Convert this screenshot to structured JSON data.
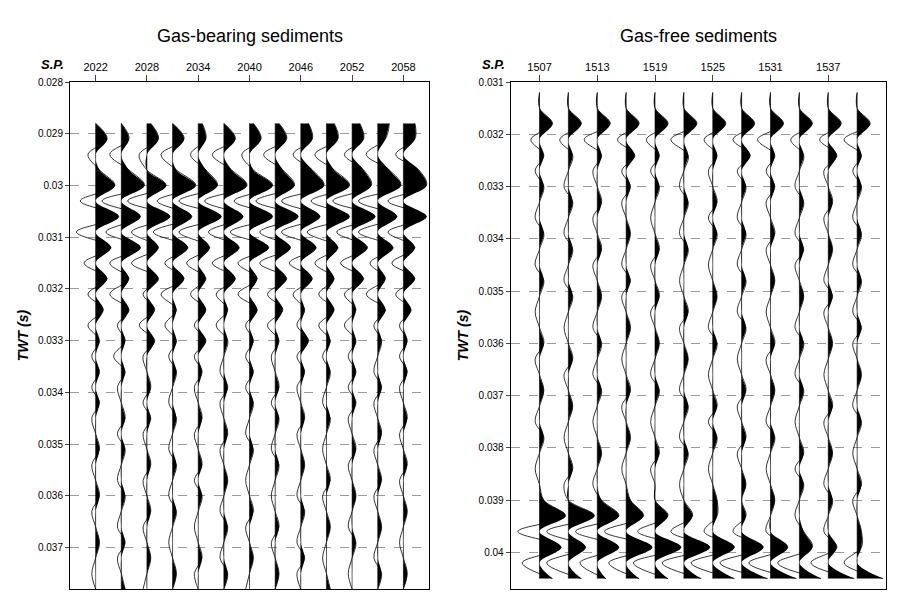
{
  "chart_data": [
    {
      "type": "wiggle",
      "title": "Gas-bearing sediments",
      "xlabel": "S.P.",
      "ylabel": "TWT (s)",
      "color": "#000000",
      "grid": true,
      "xlim": [
        2019,
        2061
      ],
      "xticks": [
        2022,
        2028,
        2034,
        2040,
        2046,
        2052,
        2058
      ],
      "ylim": [
        0.028,
        0.0378
      ],
      "yticks": [
        0.028,
        0.029,
        0.03,
        0.031,
        0.032,
        0.033,
        0.034,
        0.035,
        0.036,
        0.037
      ],
      "twt": [
        0.0288,
        0.0291,
        0.0294,
        0.0297,
        0.03,
        0.0303,
        0.0306,
        0.0309,
        0.0312,
        0.0315,
        0.0318,
        0.0321,
        0.0324,
        0.0327,
        0.033,
        0.0333,
        0.0336,
        0.0339,
        0.0342,
        0.0345,
        0.0348,
        0.0351,
        0.0354,
        0.0357,
        0.036,
        0.0363,
        0.0366,
        0.0369,
        0.0372,
        0.0375,
        0.0378
      ],
      "traces": [
        {
          "x": 2022,
          "values": [
            0,
            3,
            -2,
            1,
            5,
            -4,
            6,
            -5,
            4,
            -3,
            3,
            -2,
            2,
            -2,
            1,
            -1,
            1,
            -1,
            1,
            -1,
            0,
            1,
            -1,
            0,
            1,
            -1,
            0,
            1,
            0,
            -1,
            0
          ]
        },
        {
          "x": 2025,
          "values": [
            0,
            2,
            -3,
            2,
            6,
            -5,
            5,
            -4,
            5,
            -3,
            2,
            -3,
            2,
            -1,
            1,
            -2,
            1,
            -1,
            0,
            1,
            -1,
            1,
            0,
            -1,
            1,
            0,
            -1,
            1,
            -1,
            0,
            1
          ]
        },
        {
          "x": 2028,
          "values": [
            1,
            3,
            -2,
            0,
            5,
            -5,
            6,
            -4,
            3,
            -4,
            3,
            -1,
            2,
            -2,
            2,
            -1,
            0,
            1,
            -1,
            1,
            -1,
            0,
            1,
            -1,
            0,
            1,
            -1,
            0,
            1,
            0,
            -1
          ]
        },
        {
          "x": 2031,
          "values": [
            0,
            3,
            -3,
            1,
            6,
            -4,
            5,
            -5,
            4,
            -2,
            3,
            -3,
            1,
            -2,
            1,
            -1,
            1,
            0,
            -1,
            1,
            0,
            -1,
            1,
            0,
            -1,
            1,
            0,
            -1,
            0,
            1,
            0
          ]
        },
        {
          "x": 2034,
          "values": [
            1,
            2,
            -2,
            2,
            5,
            -5,
            6,
            -5,
            3,
            -3,
            2,
            -2,
            2,
            -1,
            2,
            -1,
            1,
            -1,
            0,
            1,
            -1,
            0,
            1,
            -1,
            1,
            0,
            -1,
            0,
            1,
            -1,
            0
          ]
        },
        {
          "x": 2037,
          "values": [
            0,
            3,
            -3,
            2,
            6,
            -5,
            5,
            -4,
            4,
            -3,
            3,
            -2,
            1,
            -2,
            1,
            0,
            -1,
            1,
            -1,
            0,
            1,
            -1,
            0,
            1,
            0,
            -1,
            1,
            0,
            -1,
            1,
            0
          ]
        },
        {
          "x": 2040,
          "values": [
            1,
            3,
            -2,
            1,
            6,
            -4,
            6,
            -5,
            5,
            -3,
            2,
            -3,
            2,
            -1,
            1,
            -1,
            1,
            -1,
            1,
            0,
            -1,
            1,
            0,
            -1,
            0,
            1,
            -1,
            0,
            1,
            0,
            -1
          ]
        },
        {
          "x": 2043,
          "values": [
            1,
            3,
            -3,
            2,
            5,
            -5,
            6,
            -4,
            4,
            -4,
            3,
            -2,
            2,
            -2,
            1,
            -1,
            0,
            1,
            -1,
            1,
            0,
            -1,
            1,
            0,
            -1,
            0,
            1,
            -1,
            0,
            1,
            0
          ]
        },
        {
          "x": 2046,
          "values": [
            2,
            3,
            -2,
            3,
            6,
            -5,
            5,
            -5,
            4,
            -3,
            3,
            -2,
            1,
            -1,
            2,
            -1,
            1,
            -1,
            0,
            1,
            -1,
            0,
            1,
            0,
            -1,
            1,
            0,
            -1,
            1,
            -1,
            0
          ]
        },
        {
          "x": 2049,
          "values": [
            2,
            3,
            -3,
            2,
            6,
            -4,
            6,
            -5,
            3,
            -3,
            2,
            -2,
            2,
            -2,
            1,
            -1,
            1,
            0,
            -1,
            1,
            0,
            -1,
            0,
            1,
            -1,
            0,
            1,
            0,
            -1,
            0,
            1
          ]
        },
        {
          "x": 2052,
          "values": [
            2,
            3,
            -2,
            3,
            5,
            -5,
            6,
            -4,
            4,
            -3,
            3,
            -2,
            1,
            -2,
            1,
            -1,
            1,
            -1,
            1,
            -1,
            0,
            1,
            -1,
            0,
            1,
            0,
            -1,
            1,
            0,
            -1,
            0
          ]
        },
        {
          "x": 2055,
          "values": [
            3,
            2,
            -3,
            3,
            6,
            -5,
            5,
            -5,
            4,
            -2,
            2,
            -3,
            2,
            -1,
            1,
            0,
            -1,
            1,
            -1,
            0,
            1,
            -1,
            0,
            1,
            -1,
            0,
            1,
            0,
            -1,
            1,
            0
          ]
        },
        {
          "x": 2058,
          "values": [
            3,
            3,
            -2,
            4,
            6,
            -4,
            6,
            -4,
            3,
            -3,
            3,
            -2,
            2,
            -1,
            1,
            -1,
            1,
            -1,
            0,
            1,
            -1,
            0,
            1,
            -1,
            0,
            1,
            0,
            -1,
            0,
            1,
            0
          ]
        }
      ]
    },
    {
      "type": "wiggle",
      "title": "Gas-free sediments",
      "xlabel": "S.P.",
      "ylabel": "TWT (s)",
      "color": "#000000",
      "grid": true,
      "xlim": [
        1504,
        1543
      ],
      "xticks": [
        1507,
        1513,
        1519,
        1525,
        1531,
        1537
      ],
      "ylim": [
        0.031,
        0.0407
      ],
      "yticks": [
        0.031,
        0.032,
        0.033,
        0.034,
        0.035,
        0.036,
        0.037,
        0.038,
        0.039,
        0.04
      ],
      "twt": [
        0.0312,
        0.0315,
        0.0318,
        0.0321,
        0.0324,
        0.0327,
        0.033,
        0.0333,
        0.0336,
        0.0339,
        0.0342,
        0.0345,
        0.0348,
        0.0351,
        0.0354,
        0.0357,
        0.036,
        0.0363,
        0.0366,
        0.0369,
        0.0372,
        0.0375,
        0.0378,
        0.0381,
        0.0384,
        0.0387,
        0.039,
        0.0393,
        0.0396,
        0.0399,
        0.0402,
        0.0405
      ],
      "traces": [
        {
          "x": 1507,
          "values": [
            0,
            0,
            3,
            -2,
            1,
            -1,
            1,
            0,
            -1,
            1,
            0,
            -1,
            1,
            0,
            -1,
            0,
            1,
            -1,
            0,
            1,
            0,
            -1,
            1,
            0,
            -1,
            0,
            1,
            6,
            -5,
            5,
            -4,
            3
          ]
        },
        {
          "x": 1510,
          "values": [
            0,
            0,
            3,
            -2,
            1,
            0,
            -1,
            1,
            0,
            -1,
            1,
            0,
            -1,
            1,
            0,
            -1,
            0,
            1,
            -1,
            0,
            1,
            0,
            -1,
            0,
            1,
            -1,
            0,
            6,
            -5,
            4,
            -5,
            3
          ]
        },
        {
          "x": 1513,
          "values": [
            0,
            0,
            3,
            -3,
            1,
            -1,
            0,
            1,
            -1,
            0,
            1,
            -1,
            0,
            1,
            0,
            -1,
            1,
            0,
            -1,
            1,
            0,
            -1,
            0,
            1,
            0,
            -1,
            1,
            5,
            -5,
            5,
            -4,
            2
          ]
        },
        {
          "x": 1516,
          "values": [
            0,
            0,
            3,
            -2,
            2,
            -1,
            1,
            -1,
            0,
            1,
            0,
            -1,
            1,
            -1,
            0,
            1,
            0,
            -1,
            0,
            1,
            -1,
            0,
            1,
            0,
            -1,
            0,
            1,
            4,
            -5,
            6,
            -4,
            3
          ]
        },
        {
          "x": 1519,
          "values": [
            0,
            0,
            3,
            -2,
            1,
            -1,
            1,
            0,
            -1,
            0,
            1,
            -1,
            0,
            1,
            -1,
            0,
            1,
            0,
            -1,
            1,
            0,
            -1,
            0,
            1,
            -1,
            0,
            0,
            3,
            -4,
            6,
            -5,
            3
          ]
        },
        {
          "x": 1522,
          "values": [
            0,
            0,
            3,
            -3,
            1,
            0,
            -1,
            1,
            0,
            -1,
            1,
            0,
            -1,
            0,
            1,
            -1,
            0,
            1,
            0,
            -1,
            1,
            0,
            -1,
            1,
            0,
            -1,
            0,
            2,
            -3,
            6,
            -5,
            4
          ]
        },
        {
          "x": 1525,
          "values": [
            0,
            0,
            3,
            -2,
            1,
            -1,
            0,
            1,
            -1,
            1,
            0,
            -1,
            0,
            1,
            0,
            -1,
            1,
            0,
            -1,
            0,
            1,
            -1,
            1,
            0,
            -1,
            0,
            1,
            1,
            -2,
            5,
            -5,
            5
          ]
        },
        {
          "x": 1528,
          "values": [
            0,
            0,
            3,
            -2,
            2,
            -1,
            1,
            0,
            -1,
            1,
            0,
            -1,
            1,
            0,
            -1,
            1,
            0,
            -1,
            0,
            1,
            -1,
            0,
            1,
            -1,
            0,
            1,
            0,
            1,
            -2,
            5,
            -5,
            6
          ]
        },
        {
          "x": 1531,
          "values": [
            0,
            0,
            3,
            -3,
            1,
            -1,
            1,
            -1,
            0,
            1,
            -1,
            0,
            1,
            0,
            -1,
            0,
            1,
            -1,
            0,
            1,
            0,
            -1,
            1,
            0,
            -1,
            0,
            1,
            0,
            -1,
            4,
            -5,
            6
          ]
        },
        {
          "x": 1534,
          "values": [
            0,
            0,
            3,
            -2,
            1,
            0,
            -1,
            1,
            0,
            -1,
            1,
            -1,
            0,
            1,
            0,
            -1,
            1,
            0,
            -1,
            1,
            0,
            -1,
            0,
            1,
            -1,
            1,
            0,
            -1,
            1,
            3,
            -5,
            5
          ]
        },
        {
          "x": 1537,
          "values": [
            0,
            0,
            3,
            -2,
            2,
            -1,
            0,
            1,
            -1,
            0,
            1,
            0,
            -1,
            1,
            -1,
            0,
            1,
            0,
            -1,
            0,
            1,
            -1,
            0,
            1,
            0,
            -1,
            1,
            0,
            -1,
            2,
            -4,
            6
          ]
        },
        {
          "x": 1540,
          "values": [
            0,
            0,
            3,
            -3,
            1,
            -1,
            1,
            0,
            -1,
            1,
            0,
            -1,
            1,
            0,
            -1,
            1,
            -1,
            0,
            1,
            0,
            -1,
            1,
            0,
            -1,
            0,
            1,
            -1,
            0,
            1,
            1,
            -3,
            6
          ]
        }
      ]
    }
  ]
}
